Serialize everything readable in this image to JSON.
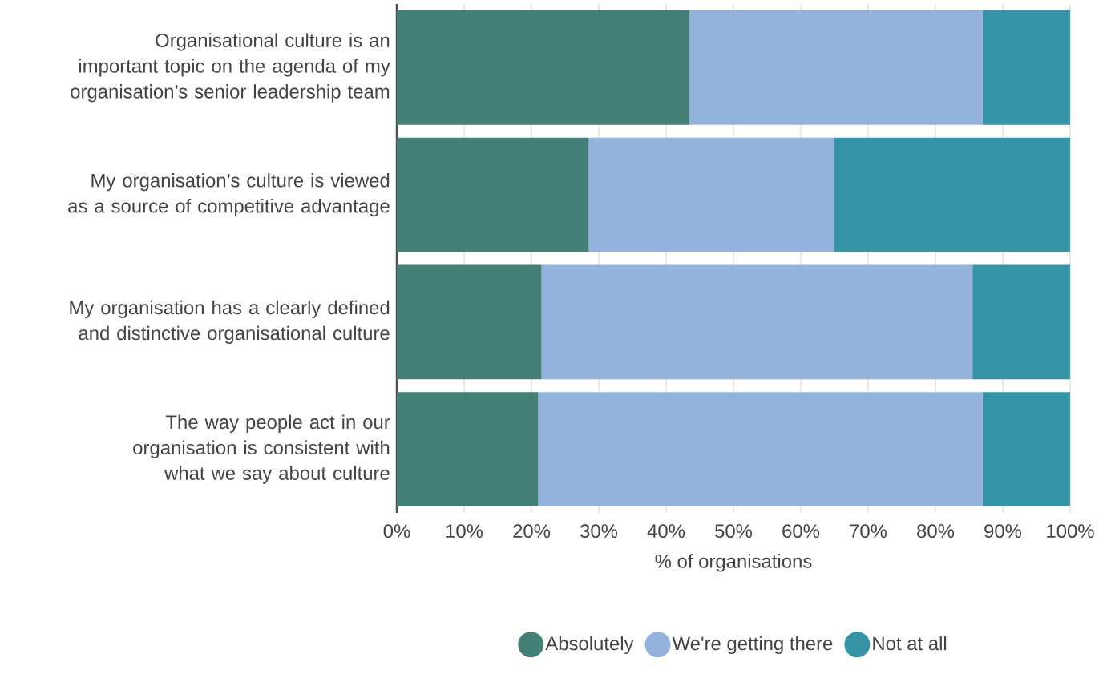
{
  "chart_data": {
    "type": "bar",
    "orientation": "horizontal",
    "stacked": true,
    "xlabel": "% of organisations",
    "categories": [
      "Organisational culture is an important topic on the agenda of my organisation’s senior leadership team",
      "My organisation’s culture is viewed as a source of competitive advantage",
      "My organisation has a clearly defined and distinctive organisational culture",
      "The way people act in our organisation is consistent with what we say about culture"
    ],
    "series": [
      {
        "name": "Absolutely",
        "color": "#458078",
        "values": [
          43.5,
          28.5,
          21.5,
          21
        ]
      },
      {
        "name": "We're getting there",
        "color": "#93b2dc",
        "values": [
          43.5,
          36.5,
          64,
          66
        ]
      },
      {
        "name": "Not at all",
        "color": "#3595a6",
        "values": [
          13,
          35,
          14.5,
          13
        ]
      }
    ],
    "xlim": [
      0,
      100
    ],
    "xticks": [
      {
        "value": 0,
        "label": "0%"
      },
      {
        "value": 10,
        "label": "10%"
      },
      {
        "value": 20,
        "label": "20%"
      },
      {
        "value": 30,
        "label": "30%"
      },
      {
        "value": 40,
        "label": "40%"
      },
      {
        "value": 50,
        "label": "50%"
      },
      {
        "value": 60,
        "label": "60%"
      },
      {
        "value": 70,
        "label": "70%"
      },
      {
        "value": 80,
        "label": "80%"
      },
      {
        "value": 90,
        "label": "90%"
      },
      {
        "value": 100,
        "label": "100%"
      }
    ],
    "grid": "x",
    "legend": "bottom"
  }
}
